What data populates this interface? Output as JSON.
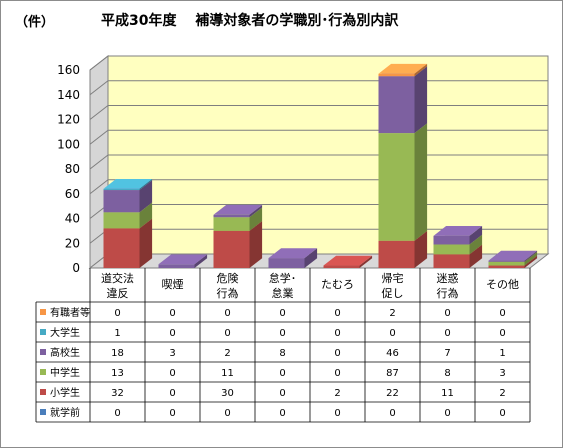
{
  "chart_data": {
    "type": "bar",
    "stacked": true,
    "three_d": true,
    "unit": "（件）",
    "title": "平成30年度　 補導対象者の学職別･行為別内訳",
    "categories": [
      "道交法\n違反",
      "喫煙",
      "危険\n行為",
      "怠学･\n怠業",
      "たむろ",
      "帰宅\n促し",
      "迷惑\n行為",
      "その他"
    ],
    "ylim": [
      0,
      160
    ],
    "yticks": [
      0,
      20,
      40,
      60,
      80,
      100,
      120,
      140,
      160
    ],
    "grid": true,
    "legend_placement": "data-table-left",
    "series": [
      {
        "name": "就学前",
        "color": "#4a7ebb",
        "values": [
          0,
          0,
          0,
          0,
          0,
          0,
          0,
          0
        ]
      },
      {
        "name": "小学生",
        "color": "#be4b48",
        "values": [
          32,
          0,
          30,
          0,
          2,
          22,
          11,
          2
        ]
      },
      {
        "name": "中学生",
        "color": "#98b954",
        "values": [
          13,
          0,
          11,
          0,
          0,
          87,
          8,
          3
        ]
      },
      {
        "name": "高校生",
        "color": "#7d60a0",
        "values": [
          18,
          3,
          2,
          8,
          0,
          46,
          7,
          1
        ]
      },
      {
        "name": "大学生",
        "color": "#46aac4",
        "values": [
          1,
          0,
          0,
          0,
          0,
          0,
          0,
          0
        ]
      },
      {
        "name": "有職者等",
        "color": "#f79646",
        "values": [
          0,
          0,
          0,
          0,
          0,
          2,
          0,
          0
        ]
      }
    ],
    "table_row_order": [
      "有職者等",
      "大学生",
      "高校生",
      "中学生",
      "小学生",
      "就学前"
    ],
    "plot_background": "#ffffc0",
    "floor_color": "#d9d9d9",
    "wall_side_color": "#d6d6d6"
  }
}
